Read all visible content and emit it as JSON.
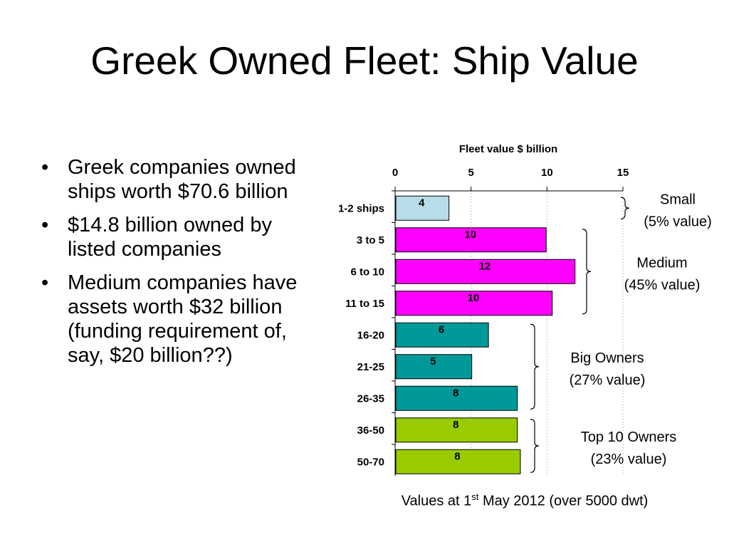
{
  "title": "Greek Owned Fleet: Ship Value",
  "bullets": [
    "Greek companies owned ships worth $70.6 billion",
    "$14.8 billion owned by listed companies",
    "Medium companies have assets worth $32 billion (funding requirement of, say, $20 billion??)"
  ],
  "chart_data": {
    "type": "bar",
    "orientation": "horizontal",
    "title": "Fleet value $ billion",
    "xlim": [
      0,
      15
    ],
    "xticks": [
      0,
      5,
      10,
      15
    ],
    "grid": "vertical dotted",
    "categories": [
      "1-2 ships",
      "3 to 5",
      "6 to 10",
      "11 to 15",
      "16-20",
      "21-25",
      "26-35",
      "36-50",
      "50-70"
    ],
    "values": [
      3.5,
      9.9,
      11.8,
      10.3,
      6.1,
      5.0,
      8.0,
      8.0,
      8.2
    ],
    "data_labels": [
      "4",
      "10",
      "12",
      "10",
      "6",
      "5",
      "8",
      "8",
      "8"
    ],
    "colors": [
      "#b7dde8",
      "#ff00ff",
      "#ff00ff",
      "#ff00ff",
      "#009999",
      "#009999",
      "#009999",
      "#99cc00",
      "#99cc00"
    ],
    "groups": [
      {
        "line1": "Small",
        "line2": "(5% value)",
        "first": 0,
        "last": 0
      },
      {
        "line1": "Medium",
        "line2": "(45% value)",
        "first": 1,
        "last": 3
      },
      {
        "line1": "Big Owners",
        "line2": "(27% value)",
        "first": 4,
        "last": 6
      },
      {
        "line1": "Top 10 Owners",
        "line2": "(23% value)",
        "first": 7,
        "last": 8
      }
    ],
    "note_prefix": "Values at 1",
    "note_sup": "st",
    "note_suffix": " May 2012 (over 5000 dwt)"
  }
}
